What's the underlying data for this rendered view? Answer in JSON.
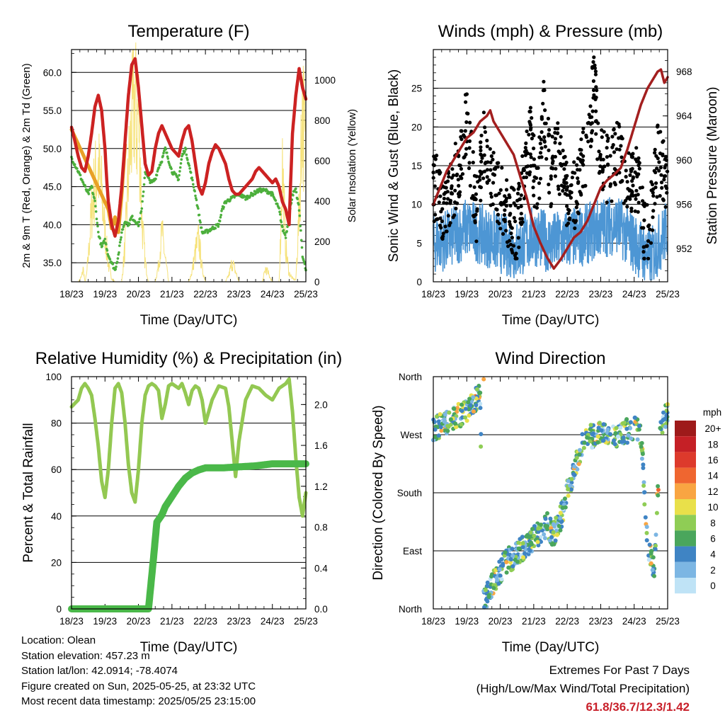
{
  "info": {
    "location": "Location: Olean",
    "elevation": "Station elevation: 457.23 m",
    "latlon": "Station lat/lon: 42.0914; -78.4074",
    "created": "Figure created on Sun, 2025-05-25, at 23:32 UTC",
    "latest": "Most recent data timestamp: 2025/05/25 23:15:00"
  },
  "extremes": {
    "line1": "Extremes For Past 7 Days",
    "line2": "(High/Low/Max Wind/Total Precipitation)",
    "values": "61.8/36.7/12.3/1.42"
  },
  "colors": {
    "temp2m": "#e8a026",
    "temp9m": "#cc2222",
    "dew": "#4caf3c",
    "solar": "#f6e27a",
    "windSonic": "#4d96d4",
    "gust": "#000000",
    "pressure": "#a31f1f",
    "rh": "#93c852",
    "precip": "#4ab849"
  },
  "chart_data": [
    {
      "type": "line",
      "title": "Temperature (F)",
      "xlabel": "Time (Day/UTC)",
      "ylabel": "2m & 9m T (Red, Orange) & 2m Td (Green)",
      "y2label": "Solar Insolation (Yellow)",
      "x_ticks": [
        "18/23",
        "19/23",
        "20/23",
        "21/23",
        "22/23",
        "23/23",
        "24/23",
        "25/23"
      ],
      "y_ticks": [
        "35.0",
        "40.0",
        "45.0",
        "50.0",
        "55.0",
        "60.0"
      ],
      "y2_ticks": [
        "0",
        "200",
        "400",
        "600",
        "800",
        "1000"
      ],
      "ylim": [
        32.5,
        63
      ],
      "y2lim": [
        0,
        1150
      ],
      "xlim": [
        0,
        7
      ],
      "series": [
        {
          "name": "9m T",
          "x": [
            0,
            0.1,
            0.2,
            0.3,
            0.4,
            0.5,
            0.6,
            0.7,
            0.8,
            0.9,
            1.0,
            1.05,
            1.1,
            1.2,
            1.3,
            1.4,
            1.5,
            1.6,
            1.7,
            1.8,
            1.9,
            2.0,
            2.1,
            2.2,
            2.3,
            2.4,
            2.5,
            2.6,
            2.7,
            2.8,
            2.9,
            3.0,
            3.1,
            3.2,
            3.3,
            3.4,
            3.5,
            3.6,
            3.7,
            3.8,
            3.9,
            4.0,
            4.1,
            4.2,
            4.3,
            4.4,
            4.5,
            4.6,
            4.7,
            4.8,
            4.9,
            5.0,
            5.1,
            5.2,
            5.3,
            5.4,
            5.5,
            5.6,
            5.7,
            5.8,
            5.9,
            6.0,
            6.1,
            6.2,
            6.3,
            6.4,
            6.5,
            6.6,
            6.7,
            6.8,
            6.9,
            7.0
          ],
          "y": [
            52.8,
            51,
            49,
            47.5,
            47,
            49,
            52,
            55.5,
            57,
            55,
            50,
            46,
            43,
            40,
            38.5,
            40.5,
            45,
            51,
            57,
            61,
            61.8,
            58,
            53,
            48,
            46.5,
            47,
            50,
            52,
            53,
            52,
            51,
            50,
            49.5,
            49,
            51,
            52.5,
            53,
            51,
            48,
            45,
            44,
            45.5,
            48,
            49.5,
            50.5,
            50,
            49,
            48,
            46,
            44.5,
            44,
            44,
            44.5,
            45,
            45.5,
            46,
            47,
            47.5,
            47,
            46.5,
            46,
            45.5,
            46,
            45,
            43,
            42,
            40,
            52,
            57,
            60.5,
            58,
            56.5
          ]
        },
        {
          "name": "2m T",
          "x": [
            0,
            1.1,
            1.2,
            1.3,
            1.4,
            1.5,
            1.6
          ],
          "y": [
            52.5,
            42,
            39.5,
            41,
            39,
            44,
            50.5
          ]
        },
        {
          "name": "2m Td",
          "x": [
            0,
            0.2,
            0.4,
            0.5,
            0.6,
            0.7,
            0.8,
            0.9,
            1.0,
            1.1,
            1.2,
            1.3,
            1.4,
            1.5,
            1.6,
            1.7,
            1.8,
            1.9,
            2.0,
            2.1,
            2.2,
            2.3,
            2.4,
            2.5,
            2.6,
            2.7,
            2.8,
            3.0,
            3.2,
            3.3,
            3.4,
            3.5,
            3.6,
            3.7,
            3.8,
            3.9,
            4.0,
            4.2,
            4.4,
            4.5,
            4.6,
            4.8,
            5.0,
            5.2,
            5.4,
            5.6,
            5.8,
            6.0,
            6.2,
            6.3,
            6.4,
            6.5,
            6.6,
            6.7,
            6.8,
            6.9,
            7.0
          ],
          "y": [
            48.8,
            47,
            45,
            44,
            45,
            43,
            39,
            37,
            38,
            36,
            35,
            34,
            36,
            39,
            40.5,
            40,
            41,
            40.5,
            40,
            42,
            47,
            46,
            45.5,
            46,
            47.5,
            48.5,
            50,
            47,
            46,
            49,
            50,
            48,
            46,
            44,
            41.5,
            39,
            39,
            39.5,
            40,
            42,
            43,
            43.5,
            44,
            43.5,
            44,
            44.5,
            44.5,
            44,
            42,
            39.5,
            38.5,
            41,
            44,
            44.5,
            42,
            36,
            34
          ]
        },
        {
          "name": "Solar",
          "x": [
            0.2,
            0.3,
            0.35,
            0.4,
            0.45,
            0.5,
            0.6,
            0.7,
            0.8,
            0.9,
            1.0,
            1.1,
            1.2,
            1.3,
            1.4,
            1.5,
            1.6,
            1.7,
            1.8,
            1.9,
            1.95,
            2.0,
            2.05,
            2.1,
            2.2,
            2.3,
            2.4,
            2.5,
            2.6,
            2.7,
            2.8,
            2.9,
            3.0,
            3.1,
            3.2,
            3.3,
            3.4,
            3.5,
            3.6,
            3.7,
            3.8,
            3.9,
            4.0,
            4.1,
            4.2,
            4.3,
            4.4,
            4.5,
            4.6,
            4.7,
            4.8,
            4.9,
            5.0,
            5.1,
            5.2,
            5.3,
            5.4,
            5.5,
            5.6,
            5.7,
            5.8,
            5.9,
            6.0,
            6.1,
            6.2,
            6.25,
            6.3,
            6.4,
            6.5,
            6.6,
            6.7,
            6.8,
            6.9,
            7.0
          ],
          "y": [
            0,
            30,
            80,
            0,
            40,
            150,
            420,
            600,
            680,
            540,
            300,
            100,
            20,
            0,
            0,
            0,
            220,
            650,
            920,
            1100,
            900,
            1050,
            760,
            380,
            120,
            0,
            0,
            0,
            100,
            300,
            140,
            0,
            0,
            0,
            0,
            0,
            0,
            0,
            60,
            180,
            260,
            80,
            0,
            0,
            0,
            0,
            0,
            0,
            0,
            40,
            120,
            60,
            0,
            0,
            0,
            0,
            0,
            0,
            0,
            0,
            80,
            40,
            0,
            0,
            0,
            300,
            700,
            200,
            50,
            20,
            10,
            420,
            1080,
            700
          ]
        }
      ]
    },
    {
      "type": "scatter",
      "title": "Winds (mph) & Pressure (mb)",
      "xlabel": "Time (Day/UTC)",
      "ylabel": "Sonic Wind & Gust (Blue, Black)",
      "y2label": "Station Pressure (Maroon)",
      "x_ticks": [
        "18/23",
        "19/23",
        "20/23",
        "21/23",
        "22/23",
        "23/23",
        "24/23",
        "25/23"
      ],
      "y_ticks": [
        "0",
        "5",
        "10",
        "15",
        "20",
        "25"
      ],
      "y2_ticks": [
        "952",
        "956",
        "960",
        "964",
        "968"
      ],
      "ylim": [
        0,
        30
      ],
      "y2lim": [
        949,
        970
      ],
      "xlim": [
        0,
        7
      ],
      "series": [
        {
          "name": "Gust",
          "x": [
            0.1,
            0.3,
            0.5,
            0.7,
            0.9,
            1.0,
            1.2,
            1.3,
            1.5,
            1.7,
            1.9,
            2.1,
            2.3,
            2.5,
            2.7,
            2.9,
            3.1,
            3.3,
            3.5,
            3.7,
            3.9,
            4.1,
            4.3,
            4.5,
            4.7,
            4.8,
            4.9,
            5.1,
            5.3,
            5.5,
            5.7,
            5.9,
            6.1,
            6.3,
            6.5,
            6.7,
            6.9
          ],
          "y": [
            12,
            9,
            11,
            14,
            16,
            22.3,
            12,
            9,
            18,
            14,
            12,
            10,
            8,
            7,
            13,
            19,
            11,
            23,
            14,
            17,
            13,
            10,
            12,
            16,
            20,
            27.5,
            19,
            15,
            14,
            18,
            13,
            12,
            14,
            6,
            8,
            16,
            14
          ]
        },
        {
          "name": "Sonic Wind",
          "x": [
            0,
            0.5,
            1,
            1.5,
            2,
            2.5,
            3,
            3.5,
            4,
            4.5,
            5,
            5.5,
            6,
            6.5,
            7
          ],
          "y": [
            5,
            5.5,
            7,
            6,
            5,
            4,
            6,
            5,
            5.5,
            6,
            7,
            7.5,
            5,
            3,
            7
          ]
        },
        {
          "name": "Pressure",
          "x": [
            0,
            0.2,
            0.4,
            0.6,
            0.8,
            1.0,
            1.2,
            1.4,
            1.6,
            1.7,
            1.8,
            2.0,
            2.2,
            2.4,
            2.6,
            2.8,
            3.0,
            3.2,
            3.4,
            3.6,
            3.8,
            4.0,
            4.2,
            4.4,
            4.6,
            4.8,
            5.0,
            5.2,
            5.4,
            5.6,
            5.8,
            6.0,
            6.2,
            6.4,
            6.6,
            6.7,
            6.8,
            6.9,
            7.0
          ],
          "y": [
            956,
            957.5,
            959,
            960,
            961,
            962,
            962.5,
            963.5,
            964,
            964.5,
            963.5,
            962.5,
            961.5,
            960.5,
            958.5,
            956.5,
            954,
            952.5,
            951.2,
            950.2,
            951,
            952,
            953,
            953.5,
            954.5,
            956,
            957.5,
            958.2,
            958.7,
            959.3,
            961,
            963,
            965,
            966.5,
            967.5,
            968,
            968.2,
            967,
            967.5
          ]
        }
      ]
    },
    {
      "type": "line",
      "title": "Relative Humidity (%) & Precipitation (in)",
      "xlabel": "Time (Day/UTC)",
      "ylabel": "Percent & Total Rainfall",
      "x_ticks": [
        "18/23",
        "19/23",
        "20/23",
        "21/23",
        "22/23",
        "23/23",
        "24/23",
        "25/23"
      ],
      "y_ticks": [
        "0",
        "20",
        "40",
        "60",
        "80",
        "100"
      ],
      "y2_ticks": [
        "0.0",
        "0.4",
        "0.8",
        "1.2",
        "1.6",
        "2.0"
      ],
      "ylim": [
        0,
        100
      ],
      "y2lim": [
        0,
        2.2727
      ],
      "xlim": [
        0,
        7
      ],
      "series": [
        {
          "name": "RH",
          "x": [
            0,
            0.2,
            0.3,
            0.4,
            0.5,
            0.6,
            0.7,
            0.8,
            0.9,
            1.0,
            1.1,
            1.2,
            1.3,
            1.4,
            1.5,
            1.6,
            1.7,
            1.8,
            1.9,
            2.0,
            2.1,
            2.2,
            2.3,
            2.4,
            2.5,
            2.6,
            2.7,
            2.8,
            2.9,
            3.0,
            3.1,
            3.2,
            3.3,
            3.4,
            3.5,
            3.6,
            3.7,
            3.8,
            3.9,
            4.0,
            4.2,
            4.4,
            4.6,
            4.7,
            4.8,
            4.9,
            5.0,
            5.2,
            5.4,
            5.6,
            5.8,
            6.0,
            6.2,
            6.4,
            6.5,
            6.6,
            6.7,
            6.8,
            6.9,
            7.0
          ],
          "y": [
            87,
            90,
            95,
            97,
            95,
            92,
            82,
            70,
            55,
            48,
            60,
            80,
            95,
            97,
            93,
            80,
            62,
            50,
            46,
            60,
            80,
            92,
            96,
            97,
            96,
            94,
            82,
            88,
            96,
            97,
            96,
            95,
            97,
            93,
            88,
            94,
            96,
            95,
            90,
            80,
            90,
            96,
            95,
            87,
            72,
            57,
            72,
            90,
            96,
            95,
            92,
            90,
            95,
            97,
            99,
            85,
            65,
            48,
            40,
            50
          ]
        },
        {
          "name": "Precipitation",
          "x": [
            0,
            2.3,
            2.45,
            2.55,
            2.7,
            2.8,
            3.0,
            3.2,
            3.4,
            3.6,
            3.8,
            4.0,
            4.5,
            5.0,
            5.5,
            6.0,
            6.5,
            7.0
          ],
          "y": [
            0,
            0,
            0.5,
            0.85,
            0.92,
            1.0,
            1.1,
            1.2,
            1.28,
            1.33,
            1.36,
            1.38,
            1.38,
            1.39,
            1.4,
            1.42,
            1.42,
            1.42
          ]
        }
      ]
    },
    {
      "type": "scatter",
      "title": "Wind Direction",
      "xlabel": "Time (Day/UTC)",
      "ylabel": "Direction (Colored By Speed)",
      "x_ticks": [
        "18/23",
        "19/23",
        "20/23",
        "21/23",
        "22/23",
        "23/23",
        "24/23",
        "25/23"
      ],
      "y_ticks": [
        "North",
        "East",
        "South",
        "West",
        "North"
      ],
      "ylim": [
        0,
        360
      ],
      "xlim": [
        0,
        7
      ],
      "legend_title": "mph",
      "legend_labels": [
        "20+",
        "18",
        "16",
        "14",
        "12",
        "10",
        "8",
        "6",
        "4",
        "2",
        "0"
      ],
      "legend_colors": [
        "#9e1a1a",
        "#c52026",
        "#dd3a2c",
        "#ef6630",
        "#f9a542",
        "#e9e04a",
        "#8fcd55",
        "#4aa65c",
        "#3f84c4",
        "#7cb6e3",
        "#bfe3f6"
      ],
      "series": [
        {
          "name": "Direction",
          "x": [
            0.0,
            0.3,
            0.5,
            0.8,
            1.0,
            1.2,
            1.4,
            1.5,
            1.6,
            1.8,
            2.0,
            2.2,
            2.4,
            2.6,
            2.8,
            3.0,
            3.2,
            3.4,
            3.6,
            3.8,
            4.0,
            4.2,
            4.4,
            4.6,
            4.8,
            5.0,
            5.2,
            5.4,
            5.6,
            5.8,
            6.0,
            6.2,
            6.4,
            6.6,
            6.8,
            7.0
          ],
          "y": [
            280,
            285,
            290,
            300,
            310,
            320,
            330,
            8,
            20,
            40,
            60,
            75,
            80,
            90,
            100,
            110,
            120,
            130,
            115,
            140,
            180,
            215,
            250,
            265,
            270,
            275,
            270,
            272,
            268,
            276,
            280,
            272,
            100,
            60,
            290,
            300
          ]
        }
      ]
    }
  ]
}
